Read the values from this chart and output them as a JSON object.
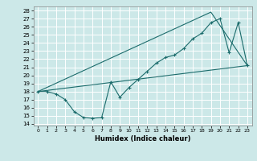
{
  "xlabel": "Humidex (Indice chaleur)",
  "xlim": [
    -0.5,
    23.5
  ],
  "ylim": [
    13.8,
    28.5
  ],
  "yticks": [
    14,
    15,
    16,
    17,
    18,
    19,
    20,
    21,
    22,
    23,
    24,
    25,
    26,
    27,
    28
  ],
  "xticks": [
    0,
    1,
    2,
    3,
    4,
    5,
    6,
    7,
    8,
    9,
    10,
    11,
    12,
    13,
    14,
    15,
    16,
    17,
    18,
    19,
    20,
    21,
    22,
    23
  ],
  "bg_color": "#cce8e8",
  "line_color": "#1a6b6b",
  "grid_color": "#ffffff",
  "line1_x": [
    0,
    1,
    2,
    3,
    4,
    5,
    6,
    7,
    8,
    9,
    10,
    11,
    12,
    13,
    14,
    15,
    16,
    17,
    18,
    19,
    20,
    21,
    22,
    23
  ],
  "line1_y": [
    18.0,
    18.0,
    17.7,
    17.0,
    15.5,
    14.8,
    14.7,
    14.8,
    19.2,
    17.3,
    18.5,
    19.5,
    20.5,
    21.5,
    22.2,
    22.5,
    23.3,
    24.5,
    25.2,
    26.5,
    27.0,
    22.8,
    26.5,
    21.2
  ],
  "line2_x": [
    0,
    23
  ],
  "line2_y": [
    18.0,
    21.2
  ],
  "line3_x": [
    0,
    19,
    23
  ],
  "line3_y": [
    18.0,
    27.8,
    21.2
  ]
}
